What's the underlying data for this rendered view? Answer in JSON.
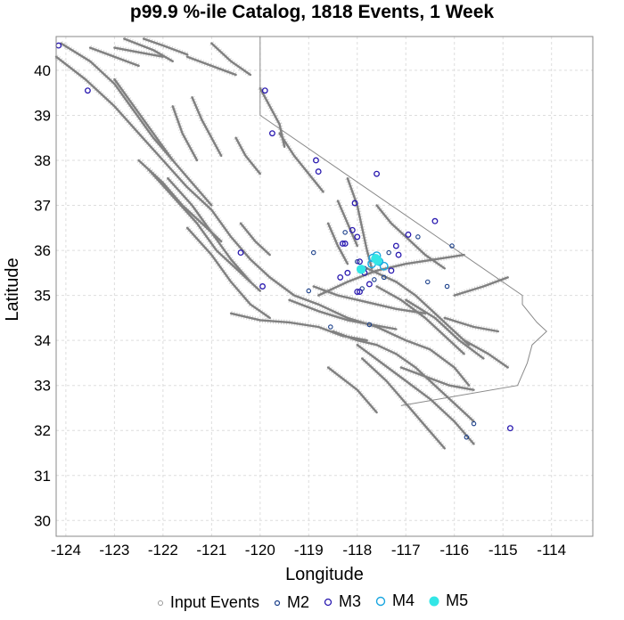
{
  "title": "p99.9 %-ile Catalog, 1818 Events, 1 Week",
  "colors": {
    "fault": "#808080",
    "grid": "#dddddd",
    "m2": "#1a3f8a",
    "m3": "#2a1ab0",
    "m4": "#19a6e0",
    "m5": "#33e6e6",
    "input": "#999999",
    "state": "#8a8a8a"
  },
  "chart_data": {
    "type": "scatter",
    "title": "p99.9 %-ile Catalog, 1818 Events, 1 Week",
    "xlabel": "Longitude",
    "ylabel": "Latitude",
    "xlim": [
      -124.2,
      -113.15
    ],
    "ylim": [
      29.65,
      40.75
    ],
    "xticks": [
      -124,
      -123,
      -122,
      -121,
      -120,
      -119,
      -118,
      -117,
      -116,
      -115,
      -114
    ],
    "yticks": [
      30,
      31,
      32,
      33,
      34,
      35,
      36,
      37,
      38,
      39,
      40
    ],
    "xtick_labels": [
      "-124",
      "-123",
      "-122",
      "-121",
      "-120",
      "-119",
      "-118",
      "-117",
      "-116",
      "-115",
      "-114"
    ],
    "ytick_labels": [
      "30",
      "31",
      "32",
      "33",
      "34",
      "35",
      "36",
      "37",
      "38",
      "39",
      "40"
    ],
    "grid": true,
    "legend": [
      "Input Events",
      "M2",
      "M3",
      "M4",
      "M5"
    ],
    "legend_position": "bottom",
    "state_border": [
      [
        -120.0,
        40.75
      ],
      [
        -120.0,
        39.0
      ],
      [
        -114.6,
        35.0
      ],
      [
        -114.6,
        34.8
      ],
      [
        -114.3,
        34.4
      ],
      [
        -114.1,
        34.2
      ],
      [
        -114.4,
        33.9
      ],
      [
        -114.5,
        33.5
      ],
      [
        -114.7,
        33.0
      ],
      [
        -117.1,
        32.55
      ]
    ],
    "faults": [
      [
        [
          -124.2,
          40.3
        ],
        [
          -123.6,
          39.8
        ],
        [
          -123.0,
          39.2
        ],
        [
          -122.5,
          38.6
        ],
        [
          -122.0,
          38.0
        ],
        [
          -121.5,
          37.4
        ],
        [
          -121.0,
          36.9
        ],
        [
          -120.6,
          36.3
        ],
        [
          -120.2,
          35.8
        ],
        [
          -119.8,
          35.4
        ],
        [
          -119.3,
          35.0
        ],
        [
          -118.8,
          34.8
        ],
        [
          -118.2,
          34.5
        ],
        [
          -117.6,
          34.3
        ],
        [
          -117.0,
          34.0
        ],
        [
          -116.5,
          33.8
        ],
        [
          -116.0,
          33.4
        ],
        [
          -115.7,
          33.0
        ]
      ],
      [
        [
          -124.1,
          40.6
        ],
        [
          -123.5,
          40.2
        ],
        [
          -123.0,
          39.7
        ],
        [
          -122.6,
          39.1
        ],
        [
          -122.2,
          38.5
        ],
        [
          -121.8,
          38.0
        ],
        [
          -121.4,
          37.5
        ],
        [
          -121.0,
          37.0
        ]
      ],
      [
        [
          -123.0,
          39.8
        ],
        [
          -122.6,
          39.2
        ],
        [
          -122.2,
          38.6
        ],
        [
          -121.8,
          38.0
        ]
      ],
      [
        [
          -122.5,
          38.0
        ],
        [
          -122.0,
          37.5
        ],
        [
          -121.6,
          37.0
        ],
        [
          -121.2,
          36.6
        ],
        [
          -120.8,
          36.2
        ]
      ],
      [
        [
          -122.3,
          37.8
        ],
        [
          -121.8,
          37.2
        ],
        [
          -121.3,
          36.6
        ],
        [
          -120.9,
          36.0
        ],
        [
          -120.5,
          35.6
        ],
        [
          -120.0,
          35.1
        ]
      ],
      [
        [
          -121.9,
          37.6
        ],
        [
          -121.4,
          37.0
        ],
        [
          -121.0,
          36.4
        ],
        [
          -120.6,
          35.8
        ],
        [
          -120.2,
          35.3
        ]
      ],
      [
        [
          -121.5,
          36.5
        ],
        [
          -121.0,
          35.9
        ],
        [
          -120.6,
          35.3
        ],
        [
          -120.2,
          34.8
        ],
        [
          -119.8,
          34.5
        ]
      ],
      [
        [
          -120.6,
          34.6
        ],
        [
          -120.0,
          34.45
        ],
        [
          -119.4,
          34.4
        ],
        [
          -118.8,
          34.3
        ],
        [
          -118.3,
          34.1
        ],
        [
          -117.8,
          34.0
        ]
      ],
      [
        [
          -119.4,
          34.9
        ],
        [
          -118.8,
          34.65
        ],
        [
          -118.2,
          34.45
        ],
        [
          -117.7,
          34.35
        ],
        [
          -117.2,
          34.25
        ]
      ],
      [
        [
          -118.5,
          34.2
        ],
        [
          -118.0,
          34.0
        ],
        [
          -117.6,
          33.9
        ],
        [
          -117.2,
          33.7
        ],
        [
          -116.8,
          33.4
        ],
        [
          -116.4,
          33.0
        ],
        [
          -116.0,
          32.6
        ],
        [
          -115.6,
          32.2
        ]
      ],
      [
        [
          -118.0,
          33.9
        ],
        [
          -117.5,
          33.5
        ],
        [
          -117.0,
          33.1
        ],
        [
          -116.5,
          32.7
        ],
        [
          -116.0,
          32.2
        ],
        [
          -115.6,
          31.7
        ]
      ],
      [
        [
          -117.9,
          33.6
        ],
        [
          -117.4,
          33.1
        ],
        [
          -117.0,
          32.6
        ],
        [
          -116.6,
          32.1
        ],
        [
          -116.2,
          31.6
        ]
      ],
      [
        [
          -118.6,
          33.4
        ],
        [
          -118.0,
          32.9
        ],
        [
          -117.6,
          32.4
        ]
      ],
      [
        [
          -118.9,
          35.2
        ],
        [
          -118.4,
          35.0
        ],
        [
          -117.8,
          34.85
        ],
        [
          -117.2,
          34.7
        ],
        [
          -116.6,
          34.6
        ]
      ],
      [
        [
          -118.8,
          35.0
        ],
        [
          -118.2,
          35.3
        ],
        [
          -117.6,
          35.55
        ],
        [
          -117.0,
          35.7
        ],
        [
          -116.4,
          35.8
        ],
        [
          -115.8,
          35.9
        ]
      ],
      [
        [
          -117.8,
          35.6
        ],
        [
          -117.2,
          35.3
        ],
        [
          -116.8,
          35.0
        ],
        [
          -116.4,
          34.6
        ],
        [
          -116.0,
          34.2
        ],
        [
          -115.7,
          33.9
        ]
      ],
      [
        [
          -117.6,
          35.2
        ],
        [
          -117.1,
          34.9
        ],
        [
          -116.6,
          34.5
        ],
        [
          -116.2,
          34.1
        ],
        [
          -115.8,
          33.7
        ]
      ],
      [
        [
          -117.0,
          34.9
        ],
        [
          -116.4,
          34.5
        ],
        [
          -115.9,
          34.0
        ],
        [
          -115.4,
          33.6
        ]
      ],
      [
        [
          -118.2,
          37.6
        ],
        [
          -118.0,
          37.0
        ],
        [
          -117.9,
          36.5
        ],
        [
          -117.8,
          36.0
        ],
        [
          -117.7,
          35.6
        ]
      ],
      [
        [
          -117.6,
          37.0
        ],
        [
          -117.3,
          36.6
        ],
        [
          -117.0,
          36.3
        ],
        [
          -116.6,
          35.9
        ],
        [
          -116.2,
          35.6
        ]
      ],
      [
        [
          -118.4,
          37.1
        ],
        [
          -118.2,
          36.6
        ],
        [
          -118.0,
          36.1
        ]
      ],
      [
        [
          -119.6,
          38.6
        ],
        [
          -119.3,
          38.1
        ],
        [
          -119.0,
          37.7
        ],
        [
          -118.7,
          37.3
        ]
      ],
      [
        [
          -120.0,
          39.6
        ],
        [
          -119.8,
          39.2
        ],
        [
          -119.6,
          38.8
        ],
        [
          -119.5,
          38.3
        ]
      ],
      [
        [
          -121.0,
          40.6
        ],
        [
          -120.6,
          40.2
        ],
        [
          -120.2,
          39.9
        ]
      ],
      [
        [
          -121.5,
          40.3
        ],
        [
          -121.0,
          40.1
        ],
        [
          -120.5,
          39.9
        ]
      ],
      [
        [
          -123.5,
          40.5
        ],
        [
          -123.0,
          40.3
        ],
        [
          -122.5,
          40.1
        ]
      ],
      [
        [
          -122.8,
          40.7
        ],
        [
          -122.2,
          40.45
        ],
        [
          -121.8,
          40.2
        ]
      ],
      [
        [
          -122.4,
          40.7
        ],
        [
          -122.0,
          40.55
        ],
        [
          -121.5,
          40.35
        ]
      ],
      [
        [
          -121.4,
          39.4
        ],
        [
          -121.2,
          38.9
        ],
        [
          -121.0,
          38.5
        ],
        [
          -120.8,
          38.1
        ]
      ],
      [
        [
          -121.8,
          39.2
        ],
        [
          -121.6,
          38.6
        ],
        [
          -121.3,
          38.0
        ]
      ],
      [
        [
          -120.5,
          38.5
        ],
        [
          -120.3,
          38.1
        ],
        [
          -120.0,
          37.7
        ]
      ],
      [
        [
          -117.1,
          33.4
        ],
        [
          -116.6,
          33.2
        ],
        [
          -116.1,
          33.0
        ],
        [
          -115.6,
          32.9
        ]
      ],
      [
        [
          -116.2,
          34.5
        ],
        [
          -115.6,
          34.3
        ],
        [
          -115.1,
          34.2
        ]
      ],
      [
        [
          -116.0,
          35.0
        ],
        [
          -115.4,
          35.2
        ],
        [
          -114.9,
          35.4
        ]
      ],
      [
        [
          -115.8,
          34.0
        ],
        [
          -115.3,
          33.7
        ],
        [
          -114.9,
          33.4
        ]
      ],
      [
        [
          -120.4,
          36.6
        ],
        [
          -120.1,
          36.2
        ],
        [
          -119.8,
          35.9
        ]
      ],
      [
        [
          -118.6,
          36.6
        ],
        [
          -118.4,
          36.1
        ],
        [
          -118.2,
          35.7
        ]
      ],
      [
        [
          -123.0,
          40.5
        ],
        [
          -122.5,
          40.4
        ],
        [
          -122.0,
          40.3
        ]
      ]
    ],
    "series": [
      {
        "name": "Input Events",
        "points": []
      },
      {
        "name": "M2",
        "points": [
          [
            -118.9,
            35.95
          ],
          [
            -116.05,
            36.1
          ],
          [
            -119.0,
            35.1
          ],
          [
            -117.75,
            34.35
          ],
          [
            -118.55,
            34.3
          ],
          [
            -116.55,
            35.3
          ],
          [
            -116.15,
            35.2
          ],
          [
            -115.6,
            32.15
          ],
          [
            -115.75,
            31.85
          ],
          [
            -117.35,
            35.95
          ],
          [
            -118.25,
            36.4
          ],
          [
            -117.85,
            35.6
          ],
          [
            -118.0,
            35.75
          ],
          [
            -117.65,
            35.35
          ],
          [
            -117.45,
            35.4
          ],
          [
            -117.9,
            35.15
          ],
          [
            -116.75,
            36.3
          ]
        ]
      },
      {
        "name": "M3",
        "points": [
          [
            -124.15,
            40.55
          ],
          [
            -123.55,
            39.55
          ],
          [
            -119.9,
            39.55
          ],
          [
            -119.75,
            38.6
          ],
          [
            -118.85,
            38.0
          ],
          [
            -118.8,
            37.75
          ],
          [
            -117.6,
            37.7
          ],
          [
            -118.05,
            37.05
          ],
          [
            -118.1,
            36.45
          ],
          [
            -118.3,
            36.15
          ],
          [
            -118.25,
            36.15
          ],
          [
            -118.0,
            36.3
          ],
          [
            -116.95,
            36.35
          ],
          [
            -117.2,
            36.1
          ],
          [
            -117.15,
            35.9
          ],
          [
            -117.95,
            35.75
          ],
          [
            -117.85,
            35.5
          ],
          [
            -118.35,
            35.4
          ],
          [
            -117.75,
            35.25
          ],
          [
            -118.0,
            35.08
          ],
          [
            -117.95,
            35.08
          ],
          [
            -120.4,
            35.95
          ],
          [
            -119.95,
            35.2
          ],
          [
            -118.2,
            35.5
          ],
          [
            -117.3,
            35.55
          ],
          [
            -114.85,
            32.05
          ],
          [
            -116.4,
            36.65
          ]
        ]
      },
      {
        "name": "M4",
        "points": [
          [
            -117.68,
            35.83
          ],
          [
            -117.55,
            35.75
          ],
          [
            -117.7,
            35.7
          ],
          [
            -117.6,
            35.88
          ],
          [
            -117.45,
            35.65
          ]
        ]
      },
      {
        "name": "M5",
        "points": [
          [
            -117.62,
            35.82
          ],
          [
            -117.58,
            35.77
          ],
          [
            -117.92,
            35.58
          ]
        ]
      }
    ]
  }
}
